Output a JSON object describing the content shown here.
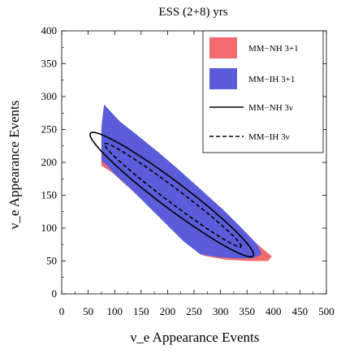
{
  "chart_data": {
    "type": "area",
    "title": "ESS (2+8) yrs",
    "xlabel": "ν_e Appearance Events",
    "ylabel": "ν_e Appearance Events",
    "xlim": [
      0,
      500
    ],
    "ylim": [
      0,
      400
    ],
    "x_ticks": [
      0,
      50,
      100,
      150,
      200,
      250,
      300,
      350,
      400,
      450,
      500
    ],
    "y_ticks": [
      0,
      50,
      100,
      150,
      200,
      250,
      300,
      350,
      400
    ],
    "grid": false,
    "legend_position": "top-right",
    "series": [
      {
        "name": "MM−NH 3+1",
        "kind": "region",
        "color": "#f16b6e",
        "points": [
          [
            75,
            195
          ],
          [
            75,
            215
          ],
          [
            80,
            245
          ],
          [
            95,
            248
          ],
          [
            130,
            232
          ],
          [
            170,
            208
          ],
          [
            210,
            182
          ],
          [
            250,
            155
          ],
          [
            290,
            128
          ],
          [
            330,
            100
          ],
          [
            370,
            75
          ],
          [
            397,
            57
          ],
          [
            390,
            50
          ],
          [
            355,
            50
          ],
          [
            310,
            52
          ],
          [
            268,
            58
          ],
          [
            232,
            80
          ],
          [
            196,
            108
          ],
          [
            160,
            137
          ],
          [
            125,
            163
          ],
          [
            95,
            185
          ]
        ]
      },
      {
        "name": "MM−IH 3+1",
        "kind": "region",
        "color": "#5b5cd9",
        "points": [
          [
            75,
            203
          ],
          [
            75,
            255
          ],
          [
            80,
            288
          ],
          [
            110,
            262
          ],
          [
            145,
            240
          ],
          [
            185,
            214
          ],
          [
            225,
            186
          ],
          [
            265,
            157
          ],
          [
            305,
            128
          ],
          [
            340,
            100
          ],
          [
            370,
            75
          ],
          [
            378,
            60
          ],
          [
            360,
            54
          ],
          [
            330,
            54
          ],
          [
            295,
            56
          ],
          [
            262,
            60
          ],
          [
            230,
            80
          ],
          [
            200,
            104
          ],
          [
            165,
            132
          ],
          [
            130,
            160
          ],
          [
            100,
            182
          ],
          [
            88,
            193
          ]
        ]
      },
      {
        "name": "MM−NH 3ν",
        "kind": "contour",
        "style": "solid",
        "color": "#000000",
        "center": [
          208,
          151
        ],
        "semi_major": 155,
        "semi_minor": 20,
        "angle_deg": -37
      },
      {
        "name": "MM−IH 3ν",
        "kind": "contour",
        "style": "dashed",
        "color": "#000000",
        "center": [
          210,
          150
        ],
        "semi_major": 130,
        "semi_minor": 11,
        "angle_deg": -37
      }
    ],
    "legend": [
      {
        "label": "MM−NH 3+1",
        "swatch": "fill",
        "color": "#f16b6e"
      },
      {
        "label": "MM−IH 3+1",
        "swatch": "fill",
        "color": "#5b5cd9"
      },
      {
        "label": "MM−NH 3ν",
        "swatch": "solid-line",
        "color": "#000000"
      },
      {
        "label": "MM−IH 3ν",
        "swatch": "dashed-line",
        "color": "#000000"
      }
    ]
  }
}
